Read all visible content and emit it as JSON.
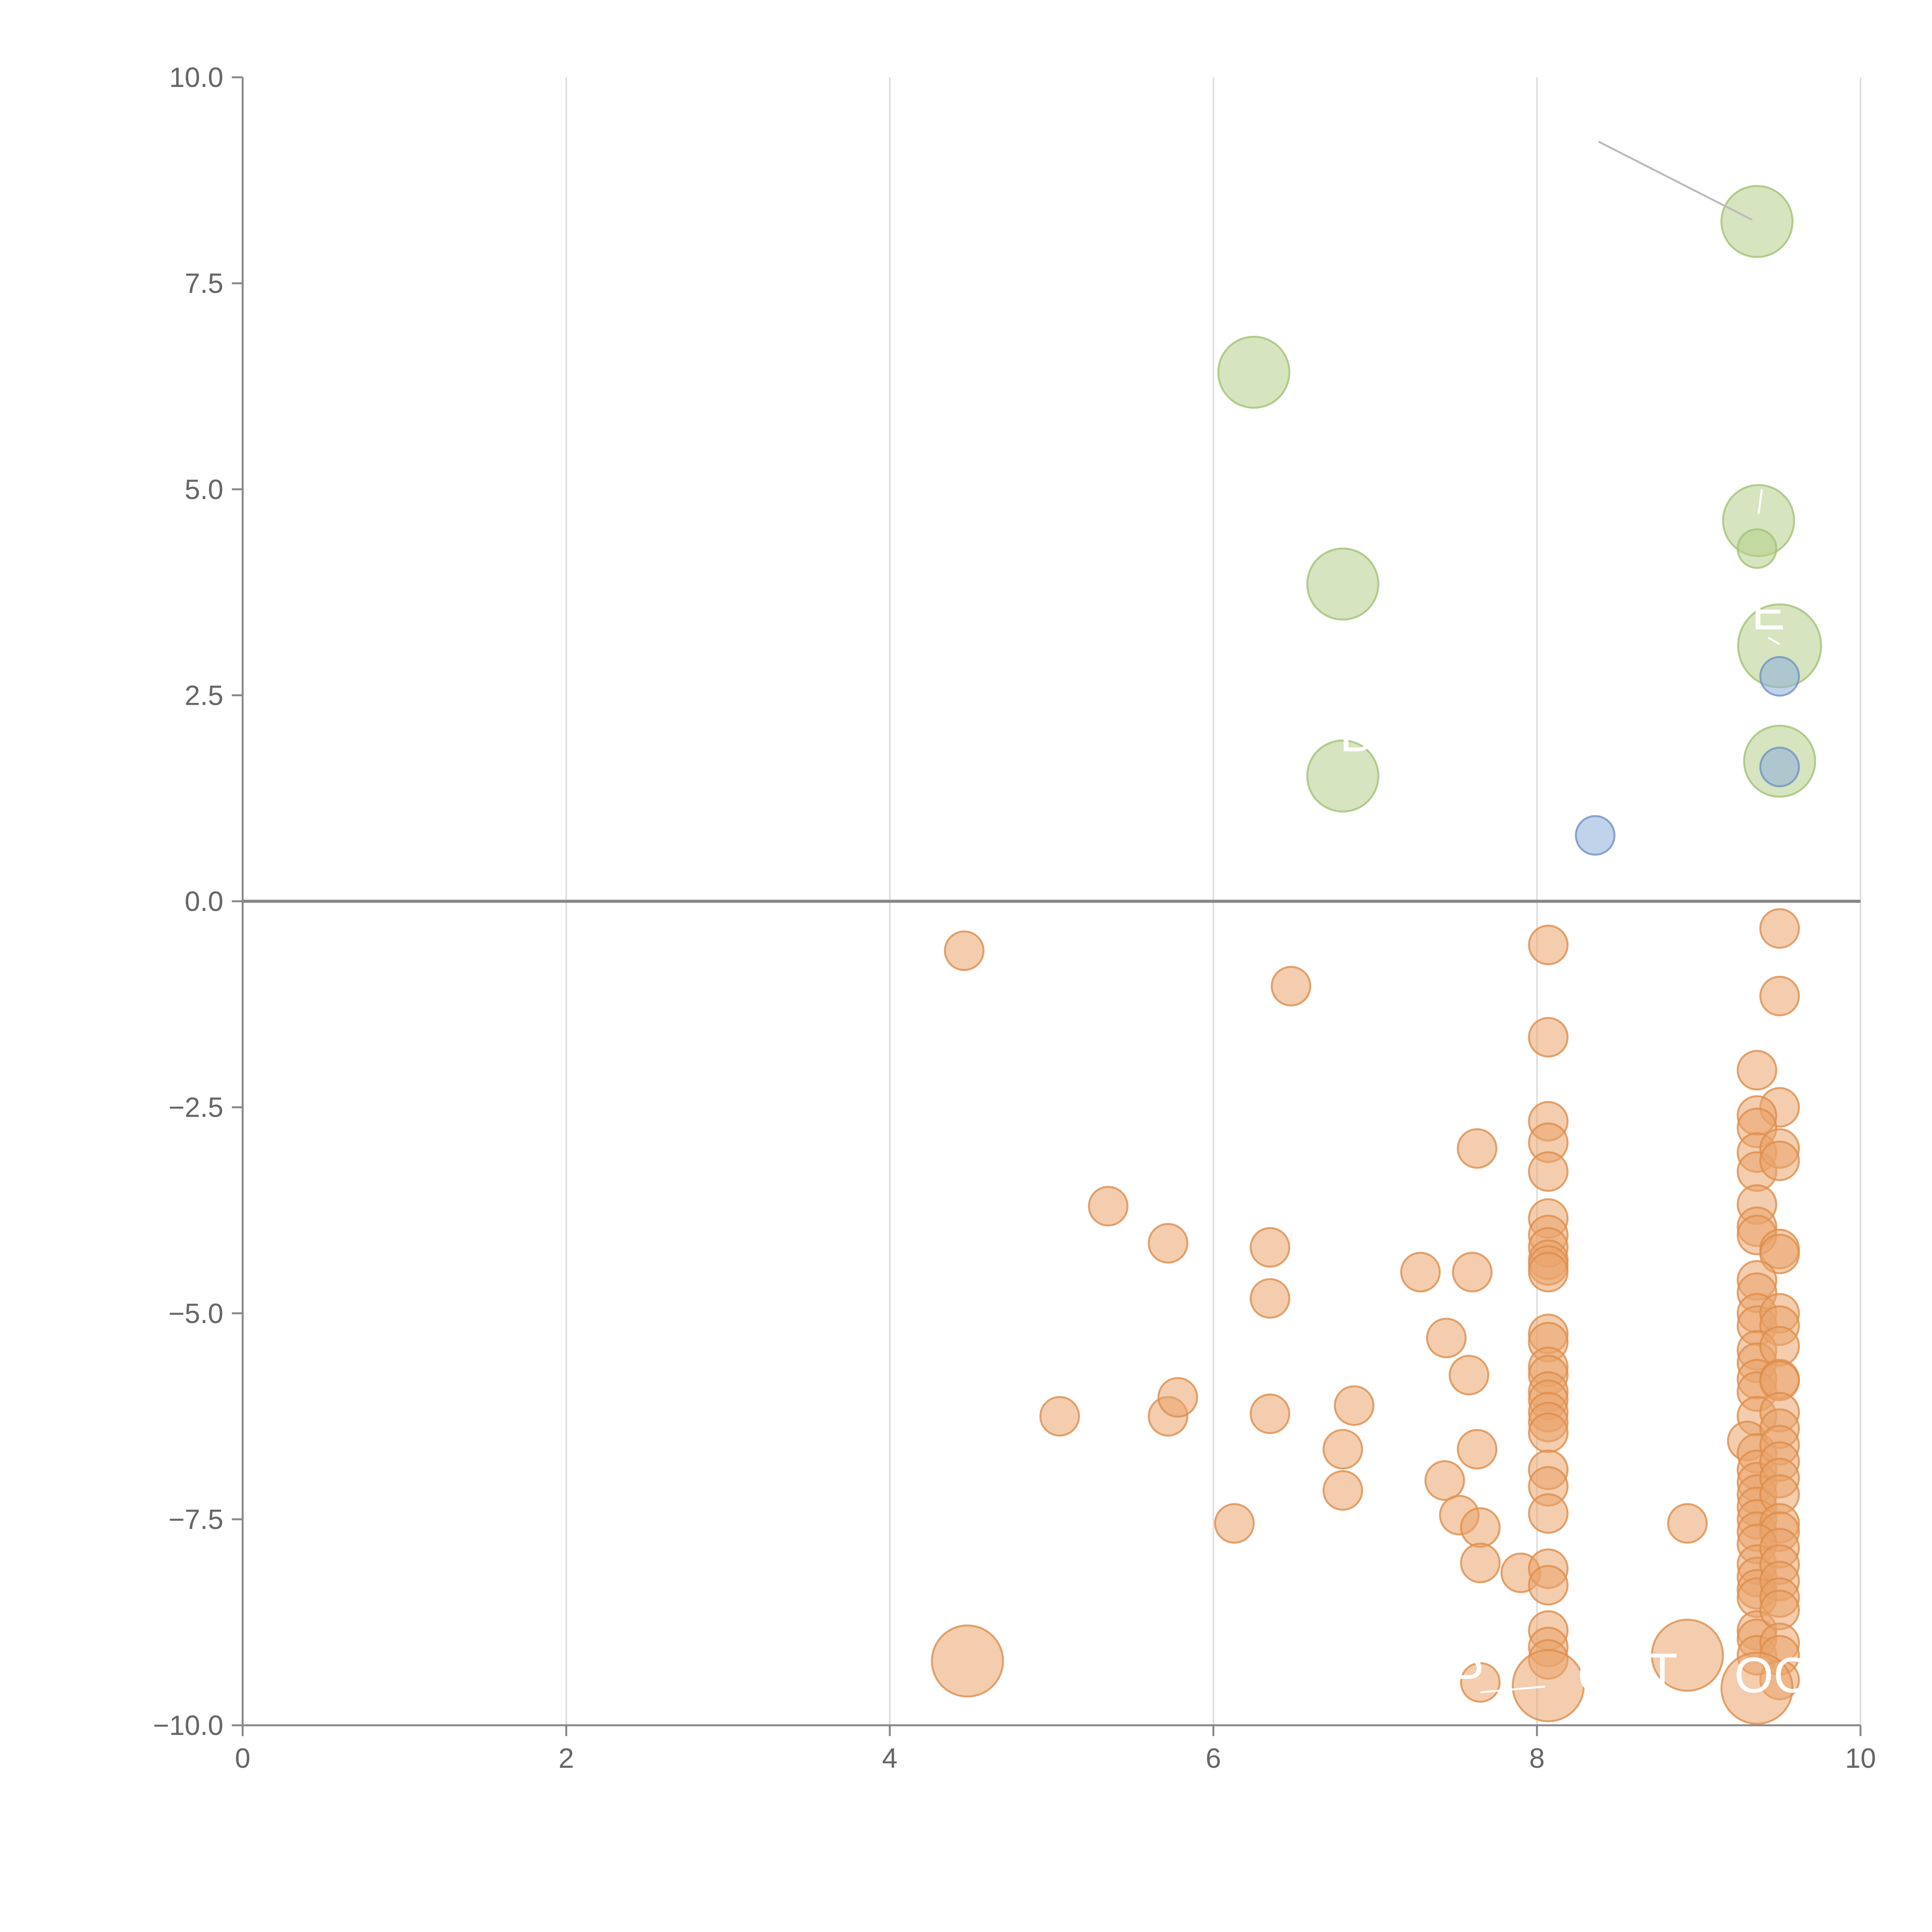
{
  "chart_data": {
    "type": "scatter",
    "title": "",
    "xlabel": "",
    "ylabel": "",
    "xlim": [
      0,
      10
    ],
    "ylim": [
      -10,
      10
    ],
    "x_ticks": [
      0,
      2,
      4,
      6,
      8,
      10
    ],
    "x_tick_labels": [
      "0",
      "2",
      "4",
      "6",
      "8",
      "10"
    ],
    "y_ticks": [
      10,
      7.5,
      5,
      2.5,
      0,
      -2.5,
      -5,
      -7.5,
      -10
    ],
    "y_tick_labels": [
      "10.0",
      "7.5",
      "5.0",
      "2.5",
      "0.0",
      "−2.5",
      "−5.0",
      "−7.5",
      "−10.0"
    ],
    "vertical_grid": true,
    "zero_line": true,
    "colors": {
      "green": "#b5d08a",
      "blue": "#8eaedb",
      "orange": "#e9a46c",
      "green_stroke": "#a2c275",
      "blue_stroke": "#6f91c4",
      "orange_stroke": "#df8d4b",
      "axis": "#888888",
      "grid": "#dddddd",
      "label": "#ffffff"
    },
    "series": [
      {
        "name": "green",
        "color": "green",
        "points": [
          [
            9.36,
            8.25,
            3
          ],
          [
            6.25,
            6.42,
            3
          ],
          [
            6.8,
            3.85,
            3
          ],
          [
            9.37,
            4.62,
            3
          ],
          [
            9.36,
            4.28,
            1
          ],
          [
            9.5,
            3.1,
            3.5
          ],
          [
            9.5,
            1.7,
            3
          ],
          [
            6.8,
            1.52,
            3
          ]
        ]
      },
      {
        "name": "blue",
        "color": "blue",
        "points": [
          [
            9.5,
            2.73,
            1
          ],
          [
            9.5,
            1.63,
            1
          ],
          [
            8.36,
            0.8,
            1
          ]
        ]
      },
      {
        "name": "orange",
        "color": "orange",
        "points": [
          [
            4.46,
            -0.6,
            1
          ],
          [
            6.48,
            -1.03,
            1
          ],
          [
            8.07,
            -0.53,
            1
          ],
          [
            9.5,
            -0.33,
            1
          ],
          [
            9.5,
            -1.15,
            1
          ],
          [
            8.07,
            -1.65,
            1
          ],
          [
            9.36,
            -2.05,
            1
          ],
          [
            9.5,
            -2.5,
            1
          ],
          [
            8.07,
            -2.67,
            1
          ],
          [
            8.07,
            -2.93,
            1
          ],
          [
            7.63,
            -3.0,
            1
          ],
          [
            8.07,
            -3.28,
            1
          ],
          [
            9.36,
            -2.6,
            1
          ],
          [
            9.36,
            -2.75,
            1
          ],
          [
            9.36,
            -3.05,
            1
          ],
          [
            9.36,
            -3.28,
            1
          ],
          [
            9.5,
            -3.0,
            1
          ],
          [
            9.5,
            -3.15,
            1
          ],
          [
            5.35,
            -3.7,
            1
          ],
          [
            5.72,
            -4.15,
            1
          ],
          [
            6.35,
            -4.2,
            1
          ],
          [
            7.28,
            -4.5,
            1
          ],
          [
            7.6,
            -4.5,
            1
          ],
          [
            6.35,
            -4.82,
            1
          ],
          [
            7.44,
            -5.3,
            1
          ],
          [
            7.58,
            -5.75,
            1
          ],
          [
            8.07,
            -3.85,
            1
          ],
          [
            8.07,
            -4.05,
            1
          ],
          [
            8.07,
            -4.2,
            1
          ],
          [
            8.07,
            -4.35,
            1
          ],
          [
            8.07,
            -4.42,
            1
          ],
          [
            8.07,
            -4.5,
            1
          ],
          [
            9.36,
            -3.68,
            1
          ],
          [
            9.36,
            -3.95,
            1
          ],
          [
            9.36,
            -4.05,
            1
          ],
          [
            9.5,
            -4.22,
            1
          ],
          [
            9.5,
            -4.28,
            1
          ],
          [
            9.36,
            -4.6,
            1
          ],
          [
            9.36,
            -4.75,
            1
          ],
          [
            9.36,
            -5.0,
            1
          ],
          [
            9.36,
            -5.15,
            1
          ],
          [
            9.5,
            -5.0,
            1
          ],
          [
            9.5,
            -5.15,
            1
          ],
          [
            8.07,
            -5.25,
            1
          ],
          [
            8.07,
            -5.35,
            1
          ],
          [
            8.07,
            -5.65,
            1
          ],
          [
            8.07,
            -5.75,
            1
          ],
          [
            8.07,
            -5.95,
            1
          ],
          [
            8.07,
            -6.05,
            1
          ],
          [
            8.07,
            -6.2,
            1
          ],
          [
            8.07,
            -6.32,
            1
          ],
          [
            8.07,
            -6.45,
            1
          ],
          [
            9.36,
            -5.45,
            1
          ],
          [
            9.36,
            -5.6,
            1
          ],
          [
            9.36,
            -5.8,
            1
          ],
          [
            9.36,
            -5.95,
            1
          ],
          [
            9.5,
            -5.4,
            1
          ],
          [
            9.5,
            -5.8,
            1
          ],
          [
            9.5,
            -5.82,
            1
          ],
          [
            5.05,
            -6.25,
            1
          ],
          [
            5.72,
            -6.25,
            1
          ],
          [
            5.78,
            -6.02,
            1
          ],
          [
            6.35,
            -6.22,
            1
          ],
          [
            6.87,
            -6.12,
            1
          ],
          [
            6.8,
            -6.65,
            1
          ],
          [
            7.63,
            -6.65,
            1
          ],
          [
            6.8,
            -7.15,
            1
          ],
          [
            7.43,
            -7.03,
            1
          ],
          [
            7.52,
            -7.45,
            1
          ],
          [
            7.65,
            -7.6,
            1
          ],
          [
            6.13,
            -7.55,
            1
          ],
          [
            7.65,
            -8.03,
            1
          ],
          [
            7.9,
            -8.15,
            1
          ],
          [
            8.07,
            -6.9,
            1
          ],
          [
            8.07,
            -7.1,
            1
          ],
          [
            8.07,
            -7.43,
            1
          ],
          [
            9.36,
            -6.25,
            1
          ],
          [
            9.3,
            -6.55,
            1
          ],
          [
            9.36,
            -6.7,
            1
          ],
          [
            9.36,
            -6.9,
            1
          ],
          [
            9.36,
            -7.05,
            1
          ],
          [
            9.36,
            -7.2,
            1
          ],
          [
            9.36,
            -7.35,
            1
          ],
          [
            9.36,
            -7.5,
            1
          ],
          [
            9.36,
            -7.65,
            1
          ],
          [
            9.5,
            -6.2,
            1
          ],
          [
            9.5,
            -6.4,
            1
          ],
          [
            9.5,
            -6.6,
            1
          ],
          [
            9.5,
            -6.8,
            1
          ],
          [
            9.5,
            -7.0,
            1
          ],
          [
            9.5,
            -7.2,
            1
          ],
          [
            9.5,
            -7.55,
            1
          ],
          [
            9.5,
            -7.65,
            1
          ],
          [
            8.93,
            -7.55,
            1
          ],
          [
            8.07,
            -8.1,
            1
          ],
          [
            8.07,
            -8.3,
            1
          ],
          [
            8.07,
            -8.85,
            1
          ],
          [
            8.07,
            -9.05,
            1
          ],
          [
            8.07,
            -9.2,
            1
          ],
          [
            9.36,
            -7.8,
            1
          ],
          [
            9.36,
            -8.05,
            1
          ],
          [
            9.36,
            -8.2,
            1
          ],
          [
            9.36,
            -8.35,
            1
          ],
          [
            9.36,
            -8.45,
            1
          ],
          [
            9.36,
            -8.85,
            1
          ],
          [
            9.36,
            -8.95,
            1
          ],
          [
            9.36,
            -9.15,
            1
          ],
          [
            9.5,
            -7.85,
            1
          ],
          [
            9.5,
            -8.05,
            1
          ],
          [
            9.5,
            -8.25,
            1
          ],
          [
            9.5,
            -8.45,
            1
          ],
          [
            9.5,
            -8.6,
            1
          ],
          [
            9.5,
            -9.0,
            1
          ],
          [
            9.5,
            -9.15,
            1
          ],
          [
            7.65,
            -9.48,
            1
          ],
          [
            9.5,
            -9.45,
            1
          ],
          [
            4.48,
            -9.22,
            3
          ],
          [
            8.93,
            -9.15,
            3
          ],
          [
            8.07,
            -9.52,
            3
          ],
          [
            9.36,
            -9.55,
            3
          ]
        ]
      }
    ],
    "annotations": [
      {
        "text": "B",
        "x": 6.78,
        "y": 1.82,
        "anchor": "start"
      },
      {
        "text": "P",
        "x": 7.57,
        "y": -9.6,
        "anchor": "middle"
      },
      {
        "text": "C",
        "x": 8.25,
        "y": -9.6,
        "anchor": "start"
      },
      {
        "text": "T",
        "x": 8.68,
        "y": -9.55,
        "anchor": "start"
      },
      {
        "text": "OCF",
        "x": 9.22,
        "y": -9.6,
        "anchor": "start"
      },
      {
        "text": "E",
        "x": 9.43,
        "y": 3.3,
        "anchor": "middle"
      }
    ],
    "leader_lines": [
      {
        "from": [
          8.38,
          9.22
        ],
        "to": [
          9.33,
          8.27
        ],
        "color": "#bbbbbb"
      },
      {
        "from": [
          9.39,
          5.0
        ],
        "to": [
          9.37,
          4.7
        ],
        "color": "#ffffff"
      },
      {
        "from": [
          9.43,
          3.2
        ],
        "to": [
          9.5,
          3.12
        ],
        "color": "#ffffff"
      },
      {
        "from": [
          7.65,
          -9.6
        ],
        "to": [
          8.05,
          -9.53
        ],
        "color": "#ffffff"
      }
    ]
  }
}
